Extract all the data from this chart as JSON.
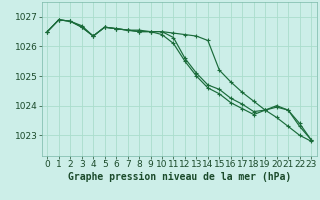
{
  "title": "Graphe pression niveau de la mer (hPa)",
  "background_color": "#cceee8",
  "grid_color": "#aaddcc",
  "line_color": "#1a6b3a",
  "x_ticks": [
    0,
    1,
    2,
    3,
    4,
    5,
    6,
    7,
    8,
    9,
    10,
    11,
    12,
    13,
    14,
    15,
    16,
    17,
    18,
    19,
    20,
    21,
    22,
    23
  ],
  "y_ticks": [
    1023,
    1024,
    1025,
    1026,
    1027
  ],
  "ylim": [
    1022.3,
    1027.5
  ],
  "xlim": [
    -0.5,
    23.5
  ],
  "series": [
    [
      1026.5,
      1026.9,
      1026.85,
      1026.7,
      1026.35,
      1026.65,
      1026.6,
      1026.55,
      1026.55,
      1026.5,
      1026.5,
      1026.45,
      1026.4,
      1026.35,
      1026.2,
      1025.2,
      1024.8,
      1024.45,
      1024.15,
      1023.85,
      1023.6,
      1023.3,
      1023.0,
      1022.8
    ],
    [
      1026.5,
      1026.9,
      1026.85,
      1026.65,
      1026.35,
      1026.65,
      1026.6,
      1026.55,
      1026.5,
      1026.5,
      1026.5,
      1026.3,
      1025.6,
      1025.1,
      1024.7,
      1024.55,
      1024.25,
      1024.05,
      1023.8,
      1023.85,
      1023.95,
      1023.85,
      1023.3,
      1022.85
    ],
    [
      1026.5,
      1026.9,
      1026.85,
      1026.65,
      1026.35,
      1026.65,
      1026.6,
      1026.55,
      1026.5,
      1026.5,
      1026.4,
      1026.1,
      1025.5,
      1025.0,
      1024.6,
      1024.4,
      1024.1,
      1023.9,
      1023.7,
      1023.85,
      1024.0,
      1023.85,
      1023.4,
      1022.85
    ]
  ],
  "title_fontsize": 7,
  "tick_fontsize": 6.5
}
